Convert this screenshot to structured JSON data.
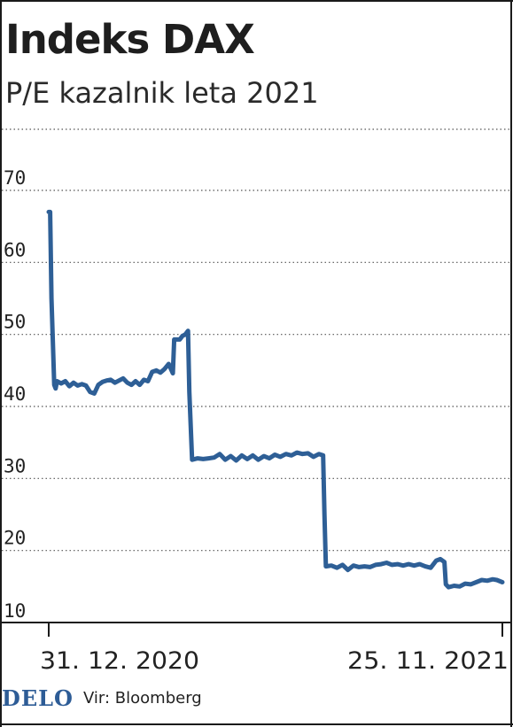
{
  "header": {
    "title": "Indeks DAX",
    "subtitle": "P/E kazalnik leta 2021"
  },
  "footer": {
    "brand": "DELO",
    "source": "Vir: Bloomberg"
  },
  "colors": {
    "line": "#2e5f96",
    "brand": "#2d5c96",
    "grid": "#555555",
    "text": "#222222"
  },
  "chart_data": {
    "type": "line",
    "title": "Indeks DAX",
    "subtitle": "P/E kazalnik leta 2021",
    "xlabel": "",
    "ylabel": "",
    "ylim": [
      10,
      70
    ],
    "yticks": [
      10,
      20,
      30,
      40,
      50,
      60,
      70
    ],
    "grid": "horizontal-dotted",
    "x_range": [
      "31. 12. 2020",
      "25. 11. 2021"
    ],
    "xtick_labels": [
      "31. 12. 2020",
      "25. 11. 2021"
    ],
    "series": [
      {
        "points": [
          [
            "31. 12. 2020",
            67
          ],
          [
            "01. 01. 2021",
            67
          ],
          [
            "02. 01. 2021",
            55
          ],
          [
            "04. 01. 2021",
            43
          ],
          [
            "05. 01. 2021",
            42.5
          ],
          [
            "06. 01. 2021",
            43.5
          ],
          [
            "09. 01. 2021",
            43.2
          ],
          [
            "12. 01. 2021",
            43.5
          ],
          [
            "15. 01. 2021",
            42.8
          ],
          [
            "18. 01. 2021",
            43.3
          ],
          [
            "21. 01. 2021",
            42.9
          ],
          [
            "24. 01. 2021",
            43.1
          ],
          [
            "27. 01. 2021",
            42.9
          ],
          [
            "30. 01. 2021",
            42.0
          ],
          [
            "02. 02. 2021",
            41.8
          ],
          [
            "05. 02. 2021",
            43.0
          ],
          [
            "08. 02. 2021",
            43.4
          ],
          [
            "11. 02. 2021",
            43.6
          ],
          [
            "14. 02. 2021",
            43.7
          ],
          [
            "17. 02. 2021",
            43.3
          ],
          [
            "20. 02. 2021",
            43.6
          ],
          [
            "23. 02. 2021",
            43.9
          ],
          [
            "26. 02. 2021",
            43.3
          ],
          [
            "01. 03. 2021",
            43.0
          ],
          [
            "04. 03. 2021",
            43.5
          ],
          [
            "07. 03. 2021",
            43.0
          ],
          [
            "10. 03. 2021",
            43.7
          ],
          [
            "13. 03. 2021",
            43.5
          ],
          [
            "16. 03. 2021",
            44.8
          ],
          [
            "19. 03. 2021",
            45.0
          ],
          [
            "22. 03. 2021",
            44.7
          ],
          [
            "25. 03. 2021",
            45.2
          ],
          [
            "28. 03. 2021",
            45.9
          ],
          [
            "31. 03. 2021",
            44.6
          ],
          [
            "01. 04. 2021",
            49.3
          ],
          [
            "05. 04. 2021",
            49.3
          ],
          [
            "07. 04. 2021",
            49.8
          ],
          [
            "09. 04. 2021",
            50.0
          ],
          [
            "11. 04. 2021",
            50.5
          ],
          [
            "12. 04. 2021",
            42.0
          ],
          [
            "14. 04. 2021",
            32.6
          ],
          [
            "18. 04. 2021",
            32.8
          ],
          [
            "22. 04. 2021",
            32.7
          ],
          [
            "26. 04. 2021",
            32.8
          ],
          [
            "30. 04. 2021",
            32.9
          ],
          [
            "04. 05. 2021",
            33.4
          ],
          [
            "08. 05. 2021",
            32.6
          ],
          [
            "12. 05. 2021",
            33.1
          ],
          [
            "16. 05. 2021",
            32.5
          ],
          [
            "20. 05. 2021",
            33.2
          ],
          [
            "24. 05. 2021",
            32.7
          ],
          [
            "28. 05. 2021",
            33.2
          ],
          [
            "01. 06. 2021",
            32.6
          ],
          [
            "05. 06. 2021",
            33.1
          ],
          [
            "09. 06. 2021",
            32.8
          ],
          [
            "13. 06. 2021",
            33.3
          ],
          [
            "17. 06. 2021",
            33.0
          ],
          [
            "21. 06. 2021",
            33.4
          ],
          [
            "25. 06. 2021",
            33.2
          ],
          [
            "29. 06. 2021",
            33.6
          ],
          [
            "03. 07. 2021",
            33.4
          ],
          [
            "07. 07. 2021",
            33.5
          ],
          [
            "11. 07. 2021",
            33.0
          ],
          [
            "15. 07. 2021",
            33.4
          ],
          [
            "18. 07. 2021",
            33.2
          ],
          [
            "19. 07. 2021",
            25.0
          ],
          [
            "20. 07. 2021",
            17.8
          ],
          [
            "24. 07. 2021",
            17.9
          ],
          [
            "28. 07. 2021",
            17.6
          ],
          [
            "01. 08. 2021",
            18.0
          ],
          [
            "05. 08. 2021",
            17.3
          ],
          [
            "09. 08. 2021",
            17.9
          ],
          [
            "13. 08. 2021",
            17.7
          ],
          [
            "17. 08. 2021",
            17.8
          ],
          [
            "21. 08. 2021",
            17.7
          ],
          [
            "25. 08. 2021",
            18.0
          ],
          [
            "29. 08. 2021",
            18.1
          ],
          [
            "02. 09. 2021",
            18.3
          ],
          [
            "06. 09. 2021",
            18.0
          ],
          [
            "10. 09. 2021",
            18.1
          ],
          [
            "14. 09. 2021",
            17.9
          ],
          [
            "18. 09. 2021",
            18.1
          ],
          [
            "22. 09. 2021",
            17.9
          ],
          [
            "26. 09. 2021",
            18.1
          ],
          [
            "30. 09. 2021",
            17.8
          ],
          [
            "04. 10. 2021",
            17.6
          ],
          [
            "08. 10. 2021",
            18.6
          ],
          [
            "11. 10. 2021",
            18.8
          ],
          [
            "14. 10. 2021",
            18.4
          ],
          [
            "15. 10. 2021",
            15.3
          ],
          [
            "17. 10. 2021",
            14.9
          ],
          [
            "21. 10. 2021",
            15.1
          ],
          [
            "25. 10. 2021",
            15.0
          ],
          [
            "29. 10. 2021",
            15.4
          ],
          [
            "02. 11. 2021",
            15.3
          ],
          [
            "06. 11. 2021",
            15.6
          ],
          [
            "10. 11. 2021",
            15.9
          ],
          [
            "14. 11. 2021",
            15.8
          ],
          [
            "18. 11. 2021",
            16.0
          ],
          [
            "21. 11. 2021",
            15.9
          ],
          [
            "25. 11. 2021",
            15.6
          ]
        ]
      }
    ]
  }
}
